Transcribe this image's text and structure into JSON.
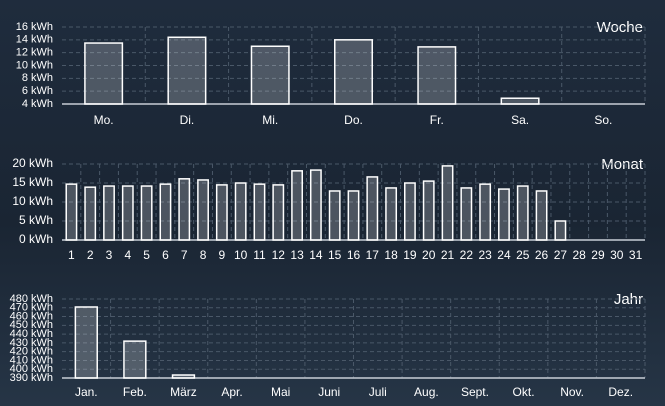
{
  "chart_data": [
    {
      "type": "bar",
      "title": "Woche",
      "categories": [
        "Mo.",
        "Di.",
        "Mi.",
        "Do.",
        "Fr.",
        "Sa.",
        "So."
      ],
      "values": [
        13.5,
        14.4,
        13.0,
        14.0,
        12.9,
        4.9,
        null
      ],
      "color": "#ffffff",
      "grid": true,
      "ylim": [
        4,
        16
      ],
      "yticks": [
        {
          "value": 4,
          "label": "4 kWh"
        },
        {
          "value": 6,
          "label": "6 kWh"
        },
        {
          "value": 8,
          "label": "8 kWh"
        },
        {
          "value": 10,
          "label": "10 kWh"
        },
        {
          "value": 12,
          "label": "12 kWh"
        },
        {
          "value": 14,
          "label": "14 kWh"
        },
        {
          "value": 16,
          "label": "16 kWh"
        }
      ]
    },
    {
      "type": "bar",
      "title": "Monat",
      "categories": [
        "1",
        "2",
        "3",
        "4",
        "5",
        "6",
        "7",
        "8",
        "9",
        "10",
        "11",
        "12",
        "13",
        "14",
        "15",
        "16",
        "17",
        "18",
        "19",
        "20",
        "21",
        "22",
        "23",
        "24",
        "25",
        "26",
        "27",
        "28",
        "29",
        "30",
        "31"
      ],
      "values": [
        14.7,
        13.9,
        14.2,
        14.2,
        14.2,
        14.7,
        16.1,
        15.8,
        14.5,
        15.0,
        14.7,
        14.5,
        18.2,
        18.4,
        12.9,
        12.9,
        16.6,
        13.7,
        15.0,
        15.5,
        19.5,
        13.7,
        14.7,
        13.4,
        14.2,
        12.9,
        5.0,
        null,
        null,
        null,
        null
      ],
      "color": "#ffffff",
      "grid": true,
      "ylim": [
        0,
        20
      ],
      "yticks": [
        {
          "value": 0,
          "label": "0 kWh"
        },
        {
          "value": 5,
          "label": "5 kWh"
        },
        {
          "value": 10,
          "label": "10 kWh"
        },
        {
          "value": 15,
          "label": "15 kWh"
        },
        {
          "value": 20,
          "label": "20 kWh"
        }
      ]
    },
    {
      "type": "bar",
      "title": "Jahr",
      "categories": [
        "Jan.",
        "Feb.",
        "März",
        "Apr.",
        "Mai",
        "Juni",
        "Juli",
        "Aug.",
        "Sept.",
        "Okt.",
        "Nov.",
        "Dez."
      ],
      "values": [
        470.9,
        432,
        393.4,
        null,
        null,
        null,
        null,
        null,
        null,
        null,
        null,
        null
      ],
      "color": "#ffffff",
      "grid": true,
      "ylim": [
        390,
        480
      ],
      "yticks": [
        {
          "value": 390,
          "label": "390 kWh"
        },
        {
          "value": 400,
          "label": "400 kWh"
        },
        {
          "value": 410,
          "label": "410 kWh"
        },
        {
          "value": 420,
          "label": "420 kWh"
        },
        {
          "value": 430,
          "label": "430 kWh"
        },
        {
          "value": 440,
          "label": "440 kWh"
        },
        {
          "value": 450,
          "label": "450 kWh"
        },
        {
          "value": 460,
          "label": "460 kWh"
        },
        {
          "value": 470,
          "label": "470 kWh"
        },
        {
          "value": 480,
          "label": "480 kWh"
        }
      ]
    }
  ]
}
